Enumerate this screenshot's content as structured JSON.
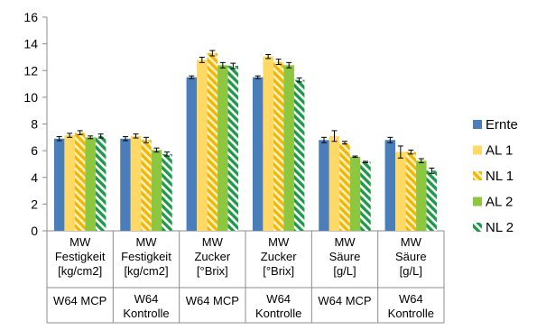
{
  "chart_data": {
    "type": "bar",
    "ylim": [
      0,
      16
    ],
    "y_ticks": [
      0,
      2,
      4,
      6,
      8,
      10,
      12,
      14,
      16
    ],
    "grid": false,
    "legend_position": "right",
    "categories": [
      {
        "metric": [
          "MW",
          "Festigkeit",
          "[kg/cm2]"
        ],
        "group": [
          "W64 MCP"
        ]
      },
      {
        "metric": [
          "MW",
          "Festigkeit",
          "[kg/cm2]"
        ],
        "group": [
          "W64",
          "Kontrolle"
        ]
      },
      {
        "metric": [
          "MW",
          "Zucker",
          "[°Brix]"
        ],
        "group": [
          "W64 MCP"
        ]
      },
      {
        "metric": [
          "MW",
          "Zucker",
          "[°Brix]"
        ],
        "group": [
          "W64",
          "Kontrolle"
        ]
      },
      {
        "metric": [
          "MW",
          "Säure",
          "[g/L]"
        ],
        "group": [
          "W64 MCP"
        ]
      },
      {
        "metric": [
          "MW",
          "Säure",
          "[g/L]"
        ],
        "group": [
          "W64",
          "Kontrolle"
        ]
      }
    ],
    "series": [
      {
        "name": "Ernte",
        "color": "#4a7ebb",
        "pattern": "solid",
        "values": [
          6.9,
          6.9,
          11.5,
          11.5,
          6.8,
          6.8
        ],
        "errors": [
          0.15,
          0.15,
          0.1,
          0.1,
          0.2,
          0.2
        ]
      },
      {
        "name": "AL 1",
        "color": "#ffd966",
        "pattern": "solid",
        "values": [
          7.15,
          7.1,
          12.8,
          13.05,
          7.1,
          5.9
        ],
        "errors": [
          0.15,
          0.15,
          0.2,
          0.15,
          0.4,
          0.45
        ]
      },
      {
        "name": "NL 1",
        "color": "#f5c242",
        "pattern": "stripes-yellow",
        "values": [
          7.35,
          6.8,
          13.3,
          12.65,
          6.6,
          5.9
        ],
        "errors": [
          0.15,
          0.2,
          0.2,
          0.2,
          0.1,
          0.15
        ]
      },
      {
        "name": "AL 2",
        "color": "#8dc63f",
        "pattern": "solid",
        "values": [
          7.0,
          6.05,
          12.4,
          12.4,
          5.55,
          5.25
        ],
        "errors": [
          0.1,
          0.15,
          0.2,
          0.2,
          0.05,
          0.15
        ]
      },
      {
        "name": "NL 2",
        "color": "#2e9e4f",
        "pattern": "stripes-green",
        "values": [
          7.1,
          5.75,
          12.35,
          11.3,
          5.15,
          4.5
        ],
        "errors": [
          0.15,
          0.15,
          0.2,
          0.15,
          0.05,
          0.2
        ]
      }
    ]
  }
}
